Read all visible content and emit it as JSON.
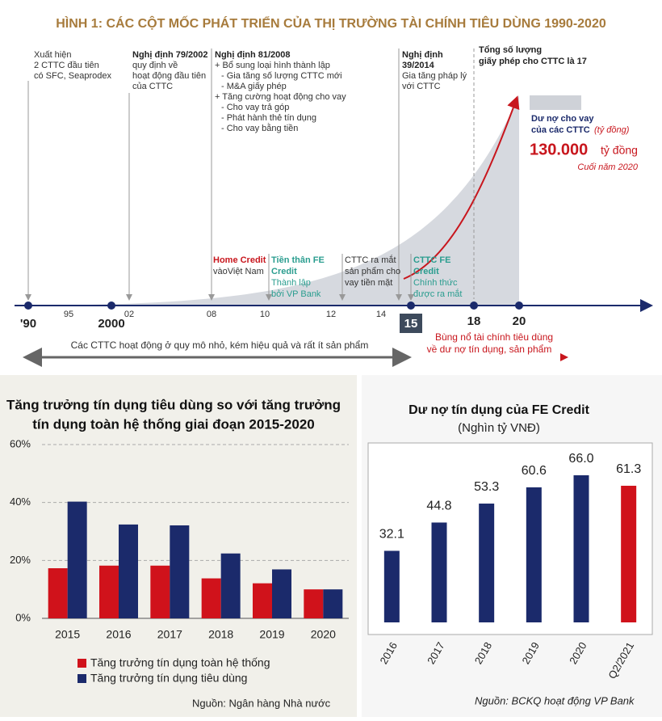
{
  "title": "HÌNH 1: CÁC CỘT MỐC PHÁT TRIỂN CỦA THỊ TRƯỜNG TÀI CHÍNH TIÊU DÙNG 1990-2020",
  "timeline": {
    "events_top": [
      {
        "lines": [
          "Xuất hiện",
          "2 CTTC đầu tiên",
          "có  SFC, Seaprodex"
        ]
      },
      {
        "heading": [
          "Nghị định 79/2002"
        ],
        "lines": [
          "quy định về",
          "hoạt động đầu tiên",
          "của CTTC"
        ]
      },
      {
        "heading": [
          "Nghị định 81/2008"
        ],
        "lines": [
          "+ Bổ sung loại hình thành lập",
          "- Gia tăng số lượng CTTC mới",
          "- M&A giấy phép",
          "+ Tăng cường hoạt động cho vay",
          "- Cho vay trả góp",
          "- Phát hành thẻ tín dụng",
          "- Cho vay bằng tiền"
        ]
      },
      {
        "heading": [
          "Nghị định",
          "39/2014"
        ],
        "lines": [
          "Gia tăng pháp lý",
          "với CTTC"
        ]
      },
      {
        "heading": [
          "Tổng số lượng",
          "giấy phép cho CTTC là 17"
        ]
      }
    ],
    "events_bottom": [
      {
        "heading": [
          "Home Credit"
        ],
        "lines": [
          "vàoViệt Nam"
        ]
      },
      {
        "heading": [
          "Tiền thân FE",
          "Credit"
        ],
        "lines": [
          "Thành lập",
          "bởi VP Bank"
        ]
      },
      {
        "lines": [
          "CTTC ra mắt",
          "sản phẩm cho",
          "vay tiền mặt"
        ]
      },
      {
        "heading": [
          "CTTC FE",
          "Credit"
        ],
        "lines": [
          "Chính thức",
          "được ra mắt"
        ]
      }
    ],
    "axis_labels": [
      "'90",
      "95",
      "2000",
      "02",
      "08",
      "10",
      "12",
      "14",
      "15",
      "18",
      "20"
    ],
    "debt": {
      "label": [
        "Dư nợ cho vay",
        "của các CTTC"
      ],
      "unit": "(tỷ đồng)",
      "amount": "130.000",
      "amount_unit": "tỷ đồng",
      "note": "Cuối năm 2020"
    },
    "phase_1": "Các CTTC hoạt động ở quy mô nhỏ, kém hiệu quả và rất ít sản phẩm",
    "phase_2": [
      "Bùng nổ tài chính tiêu dùng",
      "về dư nợ tín dụng, sản phẩm"
    ]
  },
  "chart_data": [
    {
      "type": "bar",
      "title": [
        "Tăng trưởng tín dụng tiêu dùng so với tăng trưởng",
        "tín dụng toàn hệ thống giai đoạn 2015-2020"
      ],
      "categories": [
        "2015",
        "2016",
        "2017",
        "2018",
        "2019",
        "2020"
      ],
      "series": [
        {
          "name": "Tăng trưởng tín dụng toàn hệ thống",
          "color": "#d0121b",
          "values": [
            17.3,
            18.2,
            18.2,
            13.8,
            12.1,
            10.0
          ]
        },
        {
          "name": "Tăng trưởng tín dụng tiêu dùng",
          "color": "#1b2a6b",
          "values": [
            40.3,
            32.4,
            32.1,
            22.4,
            16.9,
            10.0
          ]
        }
      ],
      "ylim": [
        0,
        60
      ],
      "yticks": [
        {
          "value": 0,
          "label": "0%"
        },
        {
          "value": 20,
          "label": "20%"
        },
        {
          "value": 40,
          "label": "40%"
        },
        {
          "value": 60,
          "label": "60%"
        }
      ],
      "grid": true,
      "source": "Nguồn: Ngân hàng Nhà nước"
    },
    {
      "type": "bar",
      "title": "Dư nợ tín dụng của FE Credit",
      "subtitle": "(Nghìn tỷ VNĐ)",
      "categories": [
        "2016",
        "2017",
        "2018",
        "2019",
        "2020",
        "Q2/2021"
      ],
      "values": [
        32.1,
        44.8,
        53.3,
        60.6,
        66.0,
        61.3
      ],
      "value_labels": [
        "32.1",
        "44.8",
        "53.3",
        "60.6",
        "66.0",
        "61.3"
      ],
      "colors": [
        "#1b2a6b",
        "#1b2a6b",
        "#1b2a6b",
        "#1b2a6b",
        "#1b2a6b",
        "#d0121b"
      ],
      "source": "Nguồn: BCKQ hoạt động VP Bank"
    }
  ]
}
